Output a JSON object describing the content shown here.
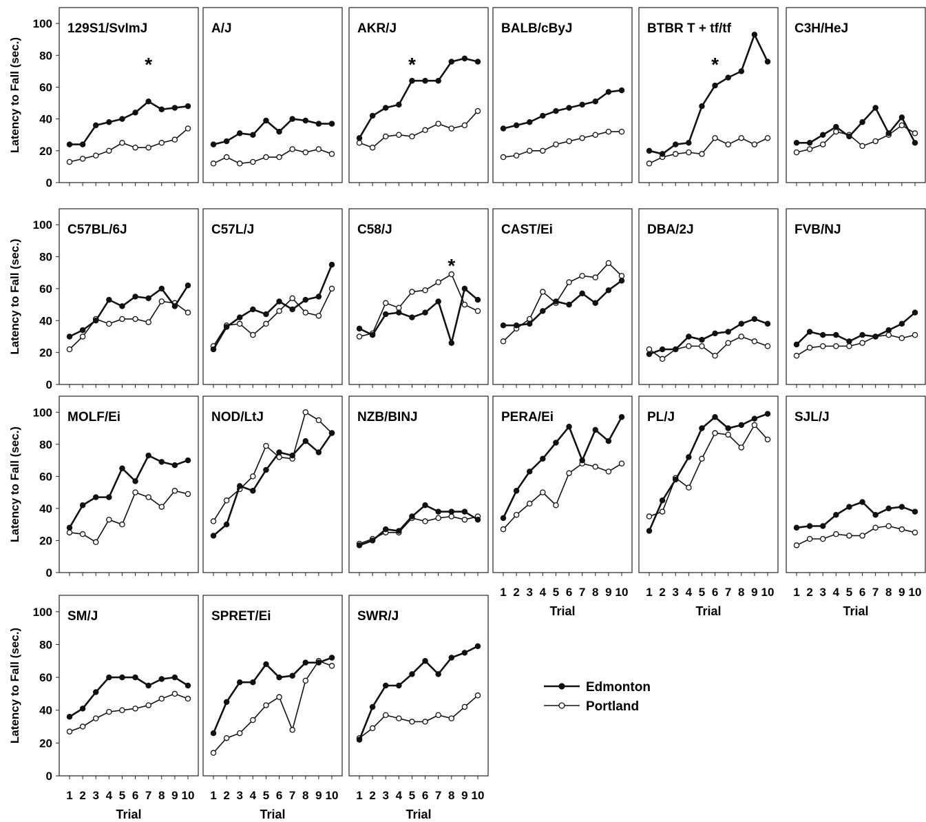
{
  "legend": {
    "position": "center-right",
    "entries": [
      {
        "name": "Edmonton",
        "marker": "filled-circle"
      },
      {
        "name": "Portland",
        "marker": "open-circle"
      }
    ]
  },
  "axis": {
    "ylabel": "Latency to Fall (sec.)",
    "xlabel": "Trial",
    "ylim": [
      0,
      110
    ],
    "yticks": [
      0,
      20,
      40,
      60,
      80,
      100
    ],
    "xticks": [
      1,
      2,
      3,
      4,
      5,
      6,
      7,
      8,
      9,
      10
    ]
  },
  "chart_data": [
    {
      "type": "line",
      "title": "129S1/SvImJ",
      "annotation": "*",
      "annotation_x": 7,
      "x": [
        1,
        2,
        3,
        4,
        5,
        6,
        7,
        8,
        9,
        10
      ],
      "series": [
        {
          "name": "Edmonton",
          "values": [
            24,
            24,
            36,
            38,
            40,
            44,
            51,
            46,
            47,
            48
          ]
        },
        {
          "name": "Portland",
          "values": [
            13,
            15,
            17,
            20,
            25,
            22,
            22,
            25,
            27,
            34
          ]
        }
      ]
    },
    {
      "type": "line",
      "title": "A/J",
      "annotation": "",
      "annotation_x": null,
      "x": [
        1,
        2,
        3,
        4,
        5,
        6,
        7,
        8,
        9,
        10
      ],
      "series": [
        {
          "name": "Edmonton",
          "values": [
            24,
            26,
            31,
            30,
            39,
            32,
            40,
            39,
            37,
            37
          ]
        },
        {
          "name": "Portland",
          "values": [
            12,
            16,
            12,
            13,
            16,
            16,
            21,
            19,
            21,
            18
          ]
        }
      ]
    },
    {
      "type": "line",
      "title": "AKR/J",
      "annotation": "*",
      "annotation_x": 5,
      "x": [
        1,
        2,
        3,
        4,
        5,
        6,
        7,
        8,
        9,
        10
      ],
      "series": [
        {
          "name": "Edmonton",
          "values": [
            28,
            42,
            47,
            49,
            64,
            64,
            64,
            76,
            78,
            76
          ]
        },
        {
          "name": "Portland",
          "values": [
            25,
            22,
            29,
            30,
            29,
            33,
            37,
            34,
            36,
            45
          ]
        }
      ]
    },
    {
      "type": "line",
      "title": "BALB/cByJ",
      "annotation": "",
      "annotation_x": null,
      "x": [
        1,
        2,
        3,
        4,
        5,
        6,
        7,
        8,
        9,
        10
      ],
      "series": [
        {
          "name": "Edmonton",
          "values": [
            34,
            36,
            38,
            42,
            45,
            47,
            49,
            51,
            57,
            58
          ]
        },
        {
          "name": "Portland",
          "values": [
            16,
            17,
            20,
            20,
            24,
            26,
            28,
            30,
            32,
            32
          ]
        }
      ]
    },
    {
      "type": "line",
      "title": "BTBR T + tf/tf",
      "annotation": "*",
      "annotation_x": 6,
      "x": [
        1,
        2,
        3,
        4,
        5,
        6,
        7,
        8,
        9,
        10
      ],
      "series": [
        {
          "name": "Edmonton",
          "values": [
            20,
            18,
            24,
            25,
            48,
            61,
            66,
            70,
            93,
            76
          ]
        },
        {
          "name": "Portland",
          "values": [
            12,
            16,
            18,
            19,
            18,
            28,
            24,
            28,
            24,
            28
          ]
        }
      ]
    },
    {
      "type": "line",
      "title": "C3H/HeJ",
      "annotation": "",
      "annotation_x": null,
      "x": [
        1,
        2,
        3,
        4,
        5,
        6,
        7,
        8,
        9,
        10
      ],
      "series": [
        {
          "name": "Edmonton",
          "values": [
            25,
            25,
            30,
            35,
            29,
            38,
            47,
            31,
            41,
            25
          ]
        },
        {
          "name": "Portland",
          "values": [
            19,
            21,
            24,
            32,
            30,
            23,
            26,
            30,
            36,
            31
          ]
        }
      ]
    },
    {
      "type": "line",
      "title": "C57BL/6J",
      "annotation": "",
      "annotation_x": null,
      "x": [
        1,
        2,
        3,
        4,
        5,
        6,
        7,
        8,
        9,
        10
      ],
      "series": [
        {
          "name": "Edmonton",
          "values": [
            30,
            34,
            40,
            53,
            49,
            55,
            54,
            60,
            49,
            62
          ]
        },
        {
          "name": "Portland",
          "values": [
            22,
            30,
            41,
            38,
            41,
            41,
            39,
            52,
            51,
            45
          ]
        }
      ]
    },
    {
      "type": "line",
      "title": "C57L/J",
      "annotation": "",
      "annotation_x": null,
      "x": [
        1,
        2,
        3,
        4,
        5,
        6,
        7,
        8,
        9,
        10
      ],
      "series": [
        {
          "name": "Edmonton",
          "values": [
            22,
            36,
            42,
            47,
            44,
            52,
            47,
            53,
            55,
            75
          ]
        },
        {
          "name": "Portland",
          "values": [
            24,
            37,
            38,
            31,
            38,
            46,
            54,
            45,
            43,
            60
          ]
        }
      ]
    },
    {
      "type": "line",
      "title": "C58/J",
      "annotation": "*",
      "annotation_x": 8,
      "x": [
        1,
        2,
        3,
        4,
        5,
        6,
        7,
        8,
        9,
        10
      ],
      "series": [
        {
          "name": "Edmonton",
          "values": [
            35,
            31,
            44,
            45,
            42,
            45,
            52,
            26,
            60,
            53
          ]
        },
        {
          "name": "Portland",
          "values": [
            30,
            32,
            51,
            48,
            58,
            59,
            64,
            69,
            50,
            46
          ]
        }
      ]
    },
    {
      "type": "line",
      "title": "CAST/Ei",
      "annotation": "",
      "annotation_x": null,
      "x": [
        1,
        2,
        3,
        4,
        5,
        6,
        7,
        8,
        9,
        10
      ],
      "series": [
        {
          "name": "Edmonton",
          "values": [
            37,
            37,
            38,
            46,
            52,
            50,
            57,
            51,
            59,
            65
          ]
        },
        {
          "name": "Portland",
          "values": [
            27,
            35,
            41,
            58,
            51,
            64,
            68,
            67,
            76,
            68
          ]
        }
      ]
    },
    {
      "type": "line",
      "title": "DBA/2J",
      "annotation": "",
      "annotation_x": null,
      "x": [
        1,
        2,
        3,
        4,
        5,
        6,
        7,
        8,
        9,
        10
      ],
      "series": [
        {
          "name": "Edmonton",
          "values": [
            19,
            22,
            22,
            30,
            28,
            32,
            33,
            38,
            41,
            38
          ]
        },
        {
          "name": "Portland",
          "values": [
            22,
            16,
            22,
            24,
            24,
            18,
            26,
            30,
            27,
            24
          ]
        }
      ]
    },
    {
      "type": "line",
      "title": "FVB/NJ",
      "annotation": "",
      "annotation_x": null,
      "x": [
        1,
        2,
        3,
        4,
        5,
        6,
        7,
        8,
        9,
        10
      ],
      "series": [
        {
          "name": "Edmonton",
          "values": [
            25,
            33,
            31,
            31,
            27,
            31,
            30,
            34,
            38,
            45
          ]
        },
        {
          "name": "Portland",
          "values": [
            18,
            23,
            24,
            24,
            24,
            26,
            30,
            31,
            29,
            31
          ]
        }
      ]
    },
    {
      "type": "line",
      "title": "MOLF/Ei",
      "annotation": "",
      "annotation_x": null,
      "x": [
        1,
        2,
        3,
        4,
        5,
        6,
        7,
        8,
        9,
        10
      ],
      "series": [
        {
          "name": "Edmonton",
          "values": [
            28,
            42,
            47,
            47,
            65,
            57,
            73,
            69,
            67,
            70
          ]
        },
        {
          "name": "Portland",
          "values": [
            25,
            24,
            19,
            33,
            30,
            50,
            47,
            41,
            51,
            49
          ]
        }
      ]
    },
    {
      "type": "line",
      "title": "NOD/LtJ",
      "annotation": "",
      "annotation_x": null,
      "x": [
        1,
        2,
        3,
        4,
        5,
        6,
        7,
        8,
        9,
        10
      ],
      "series": [
        {
          "name": "Edmonton",
          "values": [
            23,
            30,
            54,
            51,
            64,
            75,
            73,
            82,
            75,
            87
          ]
        },
        {
          "name": "Portland",
          "values": [
            32,
            45,
            52,
            60,
            79,
            72,
            71,
            100,
            95,
            87
          ]
        }
      ]
    },
    {
      "type": "line",
      "title": "NZB/BINJ",
      "annotation": "",
      "annotation_x": null,
      "x": [
        1,
        2,
        3,
        4,
        5,
        6,
        7,
        8,
        9,
        10
      ],
      "series": [
        {
          "name": "Edmonton",
          "values": [
            17,
            20,
            27,
            26,
            35,
            42,
            38,
            38,
            38,
            33
          ]
        },
        {
          "name": "Portland",
          "values": [
            18,
            21,
            25,
            25,
            34,
            32,
            34,
            35,
            33,
            35
          ]
        }
      ]
    },
    {
      "type": "line",
      "title": "PERA/Ei",
      "annotation": "",
      "annotation_x": null,
      "x": [
        1,
        2,
        3,
        4,
        5,
        6,
        7,
        8,
        9,
        10
      ],
      "series": [
        {
          "name": "Edmonton",
          "values": [
            34,
            51,
            63,
            71,
            81,
            91,
            70,
            89,
            82,
            97
          ]
        },
        {
          "name": "Portland",
          "values": [
            27,
            36,
            43,
            50,
            42,
            62,
            68,
            66,
            63,
            68
          ]
        }
      ]
    },
    {
      "type": "line",
      "title": "PL/J",
      "annotation": "",
      "annotation_x": null,
      "x": [
        1,
        2,
        3,
        4,
        5,
        6,
        7,
        8,
        9,
        10
      ],
      "series": [
        {
          "name": "Edmonton",
          "values": [
            26,
            45,
            58,
            72,
            90,
            97,
            90,
            92,
            96,
            99
          ]
        },
        {
          "name": "Portland",
          "values": [
            35,
            38,
            59,
            53,
            71,
            87,
            86,
            78,
            92,
            83
          ]
        }
      ]
    },
    {
      "type": "line",
      "title": "SJL/J",
      "annotation": "",
      "annotation_x": null,
      "x": [
        1,
        2,
        3,
        4,
        5,
        6,
        7,
        8,
        9,
        10
      ],
      "series": [
        {
          "name": "Edmonton",
          "values": [
            28,
            29,
            29,
            36,
            41,
            44,
            36,
            40,
            41,
            38
          ]
        },
        {
          "name": "Portland",
          "values": [
            17,
            21,
            21,
            24,
            23,
            23,
            28,
            29,
            27,
            25
          ]
        }
      ]
    },
    {
      "type": "line",
      "title": "SM/J",
      "annotation": "",
      "annotation_x": null,
      "x": [
        1,
        2,
        3,
        4,
        5,
        6,
        7,
        8,
        9,
        10
      ],
      "series": [
        {
          "name": "Edmonton",
          "values": [
            36,
            41,
            51,
            60,
            60,
            60,
            55,
            59,
            60,
            55
          ]
        },
        {
          "name": "Portland",
          "values": [
            27,
            30,
            35,
            39,
            40,
            41,
            43,
            47,
            50,
            47
          ]
        }
      ]
    },
    {
      "type": "line",
      "title": "SPRET/Ei",
      "annotation": "",
      "annotation_x": null,
      "x": [
        1,
        2,
        3,
        4,
        5,
        6,
        7,
        8,
        9,
        10
      ],
      "series": [
        {
          "name": "Edmonton",
          "values": [
            26,
            45,
            57,
            57,
            68,
            60,
            61,
            69,
            69,
            72
          ]
        },
        {
          "name": "Portland",
          "values": [
            14,
            23,
            26,
            34,
            43,
            48,
            28,
            58,
            70,
            67
          ]
        }
      ]
    },
    {
      "type": "line",
      "title": "SWR/J",
      "annotation": "",
      "annotation_x": null,
      "x": [
        1,
        2,
        3,
        4,
        5,
        6,
        7,
        8,
        9,
        10
      ],
      "series": [
        {
          "name": "Edmonton",
          "values": [
            22,
            42,
            55,
            55,
            62,
            70,
            62,
            72,
            75,
            79
          ]
        },
        {
          "name": "Portland",
          "values": [
            23,
            29,
            37,
            35,
            33,
            33,
            37,
            35,
            42,
            49
          ]
        }
      ]
    }
  ]
}
